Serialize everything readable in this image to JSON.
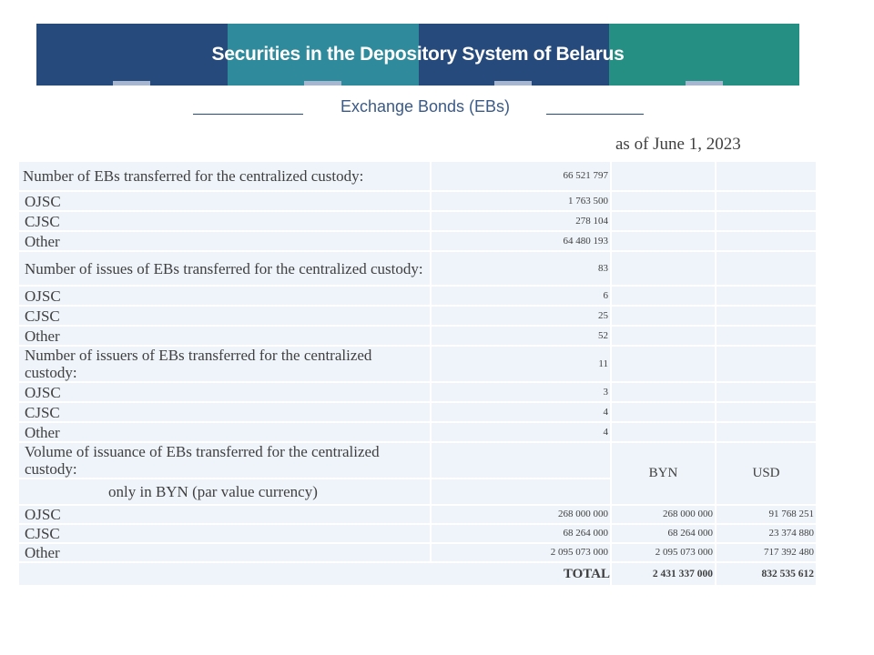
{
  "header": {
    "title": "Securities in the Depository System of Belarus",
    "subtitle": "Exchange Bonds (EBs)",
    "as_of": "as of June 1, 2023"
  },
  "colors": {
    "navy": "#254a7b",
    "teal": "#2f8a9b",
    "green": "#268f83",
    "cell": "#eef4fa"
  },
  "table": {
    "ebs_transferred": {
      "label": "Number of EBs transferred for the centralized custody:",
      "value": "66 521 797",
      "rows": [
        {
          "label": "OJSC",
          "value": "1 763 500"
        },
        {
          "label": "CJSC",
          "value": "278 104"
        },
        {
          "label": "Other",
          "value": "64 480 193"
        }
      ]
    },
    "issues": {
      "label": "Number of issues of EBs transferred for the centralized custody:",
      "value": "83",
      "rows": [
        {
          "label": "OJSC",
          "value": "6"
        },
        {
          "label": "CJSC",
          "value": "25"
        },
        {
          "label": "Other",
          "value": "52"
        }
      ]
    },
    "issuers": {
      "label": "Number of issuers of EBs transferred for the centralized custody:",
      "value": "11",
      "rows": [
        {
          "label": "OJSC",
          "value": "3"
        },
        {
          "label": "CJSC",
          "value": "4"
        },
        {
          "label": "Other",
          "value": "4"
        }
      ]
    },
    "volume": {
      "label": "Volume of issuance of EBs transferred for the centralized custody:",
      "note": "only in BYN (par value currency)",
      "col_byn": "BYN",
      "col_usd": "USD",
      "rows": [
        {
          "label": "OJSC",
          "par": "268 000 000",
          "byn": "268 000 000",
          "usd": "91 768 251"
        },
        {
          "label": "CJSC",
          "par": "68 264 000",
          "byn": "68 264 000",
          "usd": "23 374 880"
        },
        {
          "label": "Other",
          "par": "2 095 073 000",
          "byn": "2 095 073 000",
          "usd": "717 392 480"
        }
      ],
      "total_label": "TOTAL",
      "total_byn": "2 431 337 000",
      "total_usd": "832 535 612"
    }
  }
}
